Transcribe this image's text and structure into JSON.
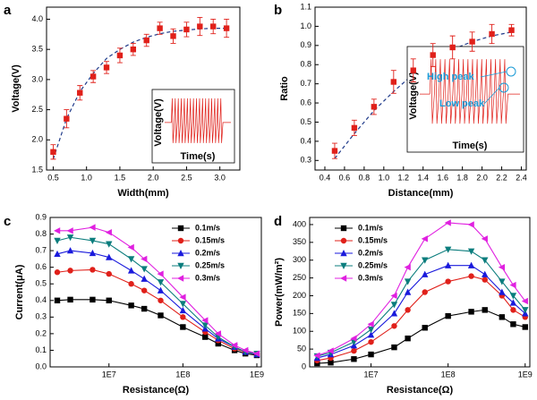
{
  "chart_data": [
    {
      "type": "scatter",
      "label": "a",
      "xlabel": "Width(mm)",
      "ylabel": "Voltage(V)",
      "color": "#e0201a",
      "fit_color": "#1f3a8a",
      "x": [
        0.5,
        0.7,
        0.9,
        1.1,
        1.3,
        1.5,
        1.7,
        1.9,
        2.1,
        2.3,
        2.5,
        2.7,
        2.9,
        3.1
      ],
      "values": [
        1.8,
        2.35,
        2.78,
        3.05,
        3.2,
        3.4,
        3.5,
        3.65,
        3.85,
        3.72,
        3.83,
        3.88,
        3.88,
        3.85
      ],
      "errors": [
        0.12,
        0.15,
        0.12,
        0.1,
        0.1,
        0.12,
        0.1,
        0.1,
        0.1,
        0.12,
        0.12,
        0.15,
        0.12,
        0.15
      ],
      "fit": [
        1.68,
        2.35,
        2.8,
        3.1,
        3.35,
        3.5,
        3.62,
        3.7,
        3.76,
        3.8,
        3.82,
        3.84,
        3.85,
        3.85
      ],
      "xlim": [
        0.4,
        3.3
      ],
      "ylim": [
        1.5,
        4.2
      ],
      "xticks": [
        0.5,
        {
          "value": 1,
          "label": "1.0"
        },
        1.5,
        {
          "value": 2,
          "label": "2.0"
        },
        2.5,
        {
          "value": 3,
          "label": "3.0"
        }
      ],
      "yticks": [
        1.5,
        {
          "value": 2,
          "label": "2.0"
        },
        2.5,
        {
          "value": 3,
          "label": "3.0"
        },
        3.5,
        {
          "value": 4,
          "label": "4.0"
        }
      ],
      "inset": {
        "xlabel": "Time(s)",
        "ylabel": "Voltage(V)"
      }
    },
    {
      "type": "scatter",
      "label": "b",
      "xlabel": "Distance(mm)",
      "ylabel": "Ratio",
      "color": "#e0201a",
      "fit_color": "#1f3a8a",
      "x": [
        0.5,
        0.7,
        0.9,
        1.1,
        1.3,
        1.5,
        1.7,
        1.9,
        2.1,
        2.3
      ],
      "values": [
        0.35,
        0.47,
        0.58,
        0.71,
        0.77,
        0.85,
        0.89,
        0.92,
        0.96,
        0.98
      ],
      "errors": [
        0.04,
        0.04,
        0.04,
        0.06,
        0.06,
        0.06,
        0.06,
        0.05,
        0.05,
        0.03
      ],
      "fit": [
        0.31,
        0.44,
        0.56,
        0.66,
        0.75,
        0.82,
        0.88,
        0.92,
        0.95,
        0.97
      ],
      "xlim": [
        0.3,
        2.45
      ],
      "ylim": [
        0.25,
        1.1
      ],
      "xticks": [
        0.4,
        0.6,
        0.8,
        {
          "value": 1,
          "label": "1.0"
        },
        1.2,
        1.4,
        1.6,
        1.8,
        {
          "value": 2,
          "label": "2.0"
        },
        2.2,
        2.4
      ],
      "yticks": [
        0.3,
        0.4,
        0.5,
        0.6,
        0.7,
        0.8,
        0.9,
        {
          "value": 1,
          "label": "1.0"
        },
        1.1
      ],
      "inset": {
        "xlabel": "Time(s)",
        "ylabel": "Voltage(V)",
        "annotations": [
          "High peak",
          "Low peak"
        ]
      }
    },
    {
      "type": "line",
      "label": "c",
      "xlabel": "Resistance(Ω)",
      "ylabel": "Current(μA)",
      "log_x": true,
      "legend": "upper right",
      "x": [
        2000000,
        3000000,
        6000000,
        10000000,
        20000000,
        30000000,
        50000000,
        100000000,
        200000000,
        300000000,
        500000000,
        700000000,
        1000000000
      ],
      "series": [
        {
          "name": "0.1m/s",
          "color": "#000000",
          "marker": "square",
          "values": [
            0.4,
            0.405,
            0.405,
            0.4,
            0.37,
            0.35,
            0.31,
            0.24,
            0.18,
            0.14,
            0.1,
            0.08,
            0.07
          ]
        },
        {
          "name": "0.15m/s",
          "color": "#e0201a",
          "marker": "circle",
          "values": [
            0.57,
            0.58,
            0.585,
            0.56,
            0.5,
            0.46,
            0.4,
            0.3,
            0.21,
            0.16,
            0.11,
            0.09,
            0.075
          ]
        },
        {
          "name": "0.2m/s",
          "color": "#1a1adc",
          "marker": "triangle-up",
          "values": [
            0.68,
            0.7,
            0.685,
            0.66,
            0.58,
            0.53,
            0.46,
            0.34,
            0.23,
            0.17,
            0.12,
            0.09,
            0.075
          ]
        },
        {
          "name": "0.25m/s",
          "color": "#0b7d7d",
          "marker": "triangle-down",
          "values": [
            0.76,
            0.78,
            0.76,
            0.74,
            0.65,
            0.59,
            0.51,
            0.38,
            0.25,
            0.18,
            0.12,
            0.09,
            0.08
          ]
        },
        {
          "name": "0.3m/s",
          "color": "#e020e0",
          "marker": "triangle-left",
          "values": [
            0.82,
            0.82,
            0.84,
            0.81,
            0.72,
            0.65,
            0.56,
            0.42,
            0.28,
            0.2,
            0.13,
            0.1,
            0.08
          ]
        }
      ],
      "xlim": [
        1600000,
        1150000000
      ],
      "ylim": [
        0,
        0.9
      ],
      "xticks": [
        {
          "value": 10000000,
          "label": "1E7"
        },
        {
          "value": 100000000,
          "label": "1E8"
        },
        {
          "value": 1000000000,
          "label": "1E9"
        }
      ],
      "yticks": [
        {
          "value": 0,
          "label": "0.0"
        },
        0.1,
        0.2,
        0.3,
        0.4,
        0.5,
        0.6,
        0.7,
        0.8,
        0.9
      ]
    },
    {
      "type": "line",
      "label": "d",
      "xlabel": "Resistance(Ω)",
      "ylabel": "Power(mW/m²)",
      "log_x": true,
      "legend": "upper left",
      "x": [
        2000000,
        3000000,
        6000000,
        10000000,
        20000000,
        30000000,
        50000000,
        100000000,
        200000000,
        300000000,
        500000000,
        700000000,
        1000000000
      ],
      "series": [
        {
          "name": "0.1m/s",
          "color": "#000000",
          "marker": "square",
          "values": [
            10,
            12,
            22,
            35,
            55,
            80,
            110,
            143,
            155,
            160,
            140,
            120,
            112
          ]
        },
        {
          "name": "0.15m/s",
          "color": "#e0201a",
          "marker": "circle",
          "values": [
            18,
            25,
            45,
            70,
            115,
            160,
            210,
            240,
            255,
            245,
            200,
            160,
            140
          ]
        },
        {
          "name": "0.2m/s",
          "color": "#1a1adc",
          "marker": "triangle-up",
          "values": [
            25,
            35,
            60,
            90,
            150,
            210,
            260,
            285,
            285,
            260,
            210,
            180,
            150
          ]
        },
        {
          "name": "0.25m/s",
          "color": "#0b7d7d",
          "marker": "triangle-down",
          "values": [
            30,
            40,
            70,
            105,
            175,
            240,
            300,
            330,
            325,
            300,
            240,
            200,
            160
          ]
        },
        {
          "name": "0.3m/s",
          "color": "#e020e0",
          "marker": "triangle-left",
          "values": [
            32,
            45,
            80,
            120,
            200,
            280,
            360,
            405,
            400,
            360,
            280,
            230,
            185
          ]
        }
      ],
      "xlim": [
        1600000,
        1150000000
      ],
      "ylim": [
        0,
        420
      ],
      "xticks": [
        {
          "value": 10000000,
          "label": "1E7"
        },
        {
          "value": 100000000,
          "label": "1E8"
        },
        {
          "value": 1000000000,
          "label": "1E9"
        }
      ],
      "yticks": [
        0,
        50,
        100,
        150,
        200,
        250,
        300,
        350,
        400
      ]
    }
  ]
}
